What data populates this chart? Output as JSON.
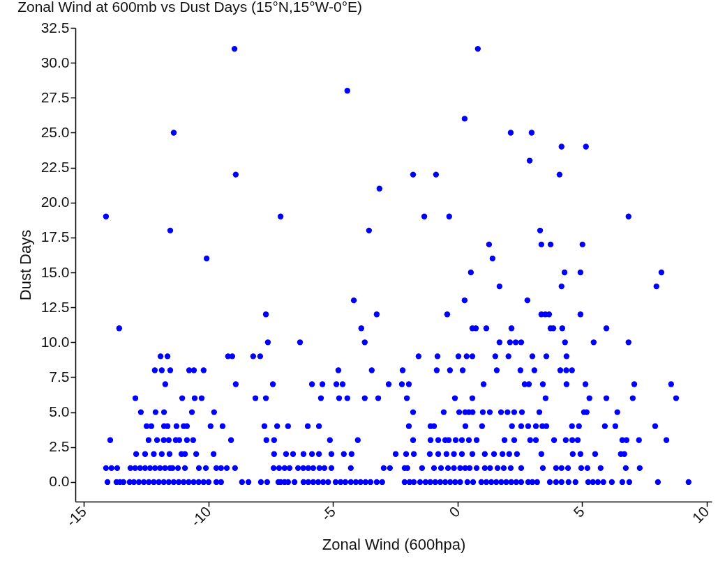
{
  "chart_data": {
    "type": "scatter",
    "title": "Zonal Wind at 600mb vs Dust Days (15°N,15°W-0°E)",
    "xlabel": "Zonal Wind (600hpa)",
    "ylabel": "Dust Days",
    "xlim": [
      -15.35,
      10.2
    ],
    "xticks": [
      -15,
      -10,
      -5,
      0,
      5,
      10
    ],
    "ylim": [
      -1.4,
      32.5
    ],
    "yticks": [
      {
        "value": 0,
        "label": "0.0"
      },
      {
        "value": 2.5,
        "label": "2.5"
      },
      {
        "value": 5,
        "label": "5.0"
      },
      {
        "value": 7.5,
        "label": "7.5"
      },
      {
        "value": 10,
        "label": "10.0"
      },
      {
        "value": 12.5,
        "label": "12.5"
      },
      {
        "value": 15,
        "label": "15.0"
      },
      {
        "value": 17.5,
        "label": "17.5"
      },
      {
        "value": 20,
        "label": "20.0"
      },
      {
        "value": 22.5,
        "label": "22.5"
      },
      {
        "value": 25,
        "label": "25.0"
      },
      {
        "value": 27.5,
        "label": "27.5"
      },
      {
        "value": 30,
        "label": "30.0"
      },
      {
        "value": 32.5,
        "label": "32.5"
      }
    ],
    "grid": false,
    "marker": "circle",
    "series": [
      {
        "color": "#0000ff",
        "x": [
          -14.06,
          -13.7,
          -13.56,
          -13.42,
          -13.17,
          -13.0,
          -12.8,
          -12.6,
          -12.4,
          -12.2,
          -12.0,
          -11.8,
          -11.6,
          -11.4,
          -11.2,
          -11.0,
          -10.8,
          -10.6,
          -10.4,
          -10.2,
          -10.0,
          -9.69,
          -9.5,
          -8.66,
          -8.4,
          -7.9,
          -7.65,
          -7.2,
          -7.11,
          -6.95,
          -6.81,
          -6.55,
          -6.19,
          -6.0,
          -5.8,
          -5.6,
          -5.4,
          -5.2,
          -4.9,
          -4.7,
          -4.51,
          -4.29,
          -4.09,
          -3.9,
          -3.7,
          -3.5,
          -3.25,
          -3.03,
          -2.13,
          -1.93,
          -1.76,
          -1.51,
          -1.29,
          -1.1,
          -0.9,
          -0.7,
          -0.5,
          -0.3,
          -0.1,
          0.1,
          0.39,
          0.62,
          0.95,
          1.15,
          1.35,
          1.55,
          1.75,
          1.95,
          2.15,
          2.35,
          2.55,
          2.83,
          3.0,
          3.19,
          3.7,
          3.95,
          4.17,
          4.45,
          4.73,
          5.24,
          5.43,
          5.63,
          5.85,
          6.19,
          6.61,
          6.89,
          8.04,
          9.27
        ],
        "values": [
          0,
          0,
          0,
          0,
          0,
          0,
          0,
          0,
          0,
          0,
          0,
          0,
          0,
          0,
          0,
          0,
          0,
          0,
          0,
          0,
          0,
          0,
          0,
          0,
          0,
          0,
          0,
          0,
          0,
          0,
          0,
          0,
          0,
          0,
          0,
          0,
          0,
          0,
          0,
          0,
          0,
          0,
          0,
          0,
          0,
          0,
          0,
          0,
          0,
          0,
          0,
          0,
          0,
          0,
          0,
          0,
          0,
          0,
          0,
          0,
          0,
          0,
          0,
          0,
          0,
          0,
          0,
          0,
          0,
          0,
          0,
          0,
          0,
          0,
          0,
          0,
          0,
          0,
          0,
          0,
          0,
          0,
          0,
          0,
          0,
          0,
          0,
          0
        ]
      },
      {
        "color": "#0000ff",
        "x": [
          -14.12,
          -13.9,
          -13.67,
          -13.14,
          -12.95,
          -12.75,
          -12.55,
          -12.35,
          -12.15,
          -11.95,
          -11.75,
          -11.55,
          -11.45,
          -11.23,
          -10.95,
          -10.39,
          -10.11,
          -9.69,
          -9.5,
          -9.27,
          -8.94,
          -7.39,
          -7.17,
          -6.95,
          -6.75,
          -6.41,
          -6.2,
          -6.0,
          -5.8,
          -5.55,
          -5.35,
          -5.07,
          -4.29,
          -2.97,
          -2.72,
          -2.13,
          -2.02,
          -1.43,
          -0.95,
          -0.67,
          -0.39,
          -0.15,
          0.1,
          0.3,
          0.48,
          0.76,
          1.09,
          1.3,
          1.6,
          1.85,
          2.13,
          2.55,
          3.42,
          3.95,
          4.17,
          4.43,
          4.96,
          5.21,
          5.74,
          6.75,
          7.31
        ],
        "values": [
          1,
          1,
          1,
          1,
          1,
          1,
          1,
          1,
          1,
          1,
          1,
          1,
          1,
          1,
          1,
          1,
          1,
          1,
          1,
          1,
          1,
          1,
          1,
          1,
          1,
          1,
          1,
          1,
          1,
          1,
          1,
          1,
          1,
          1,
          1,
          1,
          1,
          1,
          1,
          1,
          1,
          1,
          1,
          1,
          1,
          1,
          1,
          1,
          1,
          1,
          1,
          1,
          1,
          1,
          1,
          1,
          1,
          1,
          1,
          1,
          1
        ]
      },
      {
        "color": "#0000ff",
        "x": [
          -12.91,
          -12.55,
          -12.2,
          -11.88,
          -11.57,
          -11.09,
          -10.95,
          -10.5,
          -9.8,
          -7.37,
          -6.89,
          -6.61,
          -6.19,
          -5.85,
          -5.57,
          -5.07,
          -4.57,
          -4.26,
          -2.49,
          -2.07,
          -1.76,
          -1.12,
          -0.78,
          -0.45,
          -0.15,
          0.17,
          0.59,
          1.09,
          1.46,
          1.8,
          2.07,
          2.38,
          3.36,
          4.62,
          4.93,
          5.52,
          6.55,
          6.69
        ],
        "values": [
          2,
          2,
          2,
          2,
          2,
          2,
          2,
          2,
          2,
          2,
          2,
          2,
          2,
          2,
          2,
          2,
          2,
          2,
          2,
          2,
          2,
          2,
          2,
          2,
          2,
          2,
          2,
          2,
          2,
          2,
          2,
          2,
          2,
          2,
          2,
          2,
          2,
          2
        ]
      },
      {
        "color": "#0000ff",
        "x": [
          -13.95,
          -12.41,
          -12.07,
          -11.8,
          -11.6,
          -11.32,
          -11.18,
          -10.87,
          -10.62,
          -9.1,
          -7.68,
          -7.37,
          -5.13,
          -4.01,
          -1.79,
          -1.09,
          -0.78,
          -0.5,
          -0.36,
          -0.08,
          0.17,
          0.45,
          0.76,
          1.88,
          2.27,
          2.91,
          3.14,
          3.87,
          4.34,
          4.6,
          4.82,
          6.61,
          6.78,
          7.28,
          8.38
        ],
        "values": [
          3,
          3,
          3,
          3,
          3,
          3,
          3,
          3,
          3,
          3,
          3,
          3,
          3,
          3,
          3,
          3,
          3,
          3,
          3,
          3,
          3,
          3,
          3,
          3,
          3,
          3,
          3,
          3,
          3,
          3,
          3,
          3,
          3,
          3,
          3
        ]
      },
      {
        "color": "#0000ff",
        "x": [
          -12.49,
          -12.3,
          -11.79,
          -11.65,
          -11.29,
          -11.0,
          -10.87,
          -9.92,
          -9.44,
          -7.76,
          -7.25,
          -6.81,
          -6.02,
          -5.57,
          -1.96,
          -1.09,
          -0.95,
          0.31,
          0.98,
          2.18,
          2.55,
          2.83,
          3.14,
          3.4,
          3.56,
          4.59,
          4.87,
          5.91,
          6.33,
          7.93
        ],
        "values": [
          4,
          4,
          4,
          4,
          4,
          4,
          4,
          4,
          4,
          4,
          4,
          4,
          4,
          4,
          4,
          4,
          4,
          4,
          4,
          4,
          4,
          4,
          4,
          4,
          4,
          4,
          4,
          4,
          4,
          4
        ]
      },
      {
        "color": "#0000ff",
        "x": [
          -12.72,
          -12.13,
          -11.79,
          -10.67,
          -9.78,
          -1.79,
          -0.56,
          0.06,
          0.3,
          0.6,
          0.45,
          1.01,
          1.29,
          1.74,
          2.0,
          2.27,
          2.58,
          3.28,
          5.07,
          5.18,
          6.41
        ],
        "values": [
          5,
          5,
          5,
          5,
          5,
          5,
          5,
          5,
          5,
          5,
          5,
          5,
          5,
          5,
          5,
          5,
          5,
          5,
          5,
          5,
          5
        ]
      },
      {
        "color": "#0000ff",
        "x": [
          -12.94,
          -11.06,
          -10.56,
          -10.28,
          -8.12,
          -7.7,
          -5.49,
          -4.76,
          -4.43,
          -3.73,
          -3.19,
          -2.04,
          -0.11,
          0.59,
          3.53,
          5.29,
          5.97,
          7.03,
          8.77
        ],
        "values": [
          6,
          6,
          6,
          6,
          6,
          6,
          6,
          6,
          6,
          6,
          6,
          6,
          6,
          6,
          6,
          6,
          6,
          6,
          6
        ]
      },
      {
        "color": "#0000ff",
        "x": [
          -11.74,
          -8.91,
          -7.42,
          -5.85,
          -5.43,
          -4.87,
          -4.62,
          -2.77,
          -2.24,
          -1.96,
          1.04,
          2.69,
          2.86,
          3.42,
          4.37,
          5.13,
          7.09,
          8.57
        ],
        "values": [
          7,
          7,
          7,
          7,
          7,
          7,
          7,
          7,
          7,
          7,
          7,
          7,
          7,
          7,
          7,
          7,
          7,
          7
        ]
      },
      {
        "color": "#0000ff",
        "x": [
          -12.16,
          -11.88,
          -11.54,
          -10.78,
          -10.59,
          -10.2,
          -4.79,
          -3.45,
          -2.21,
          -0.84,
          -0.31,
          0.2,
          1.57,
          2.52,
          3.08,
          4.12,
          4.36,
          4.59
        ],
        "values": [
          8,
          8,
          8,
          8,
          8,
          8,
          8,
          8,
          8,
          8,
          8,
          8,
          8,
          8,
          8,
          8,
          8,
          8
        ]
      },
      {
        "color": "#0000ff",
        "x": [
          -11.93,
          -11.65,
          -9.22,
          -9.05,
          -8.21,
          -7.93,
          -1.57,
          -0.81,
          0.03,
          0.36,
          0.59,
          1.51,
          2.04,
          3.0,
          3.56,
          4.37
        ],
        "values": [
          9,
          9,
          9,
          9,
          9,
          9,
          9,
          9,
          9,
          9,
          9,
          9,
          9,
          9,
          9,
          9
        ]
      },
      {
        "color": "#0000ff",
        "x": [
          -7.62,
          -6.33,
          -3.73,
          1.68,
          2.1,
          2.33,
          2.55,
          4.31,
          5.46,
          6.86
        ],
        "values": [
          10,
          10,
          10,
          10,
          10,
          10,
          10,
          10,
          10,
          10
        ]
      },
      {
        "color": "#0000ff",
        "x": [
          -13.59,
          -3.87,
          0.59,
          0.73,
          1.15,
          2.16,
          3.73,
          3.84,
          4.2,
          5.97
        ],
        "values": [
          11,
          11,
          11,
          11,
          11,
          11,
          11,
          11,
          11,
          11
        ]
      },
      {
        "color": "#0000ff",
        "x": [
          -7.7,
          -3.25,
          -0.42,
          3.36,
          3.52,
          3.67,
          4.93
        ],
        "values": [
          12,
          12,
          12,
          12,
          12,
          12,
          12
        ]
      },
      {
        "color": "#0000ff",
        "x": [
          -4.17,
          0.28,
          2.8,
          1.68,
          4.17,
          7.98,
          0.53,
          4.29,
          4.93,
          8.18,
          1.4,
          -10.08,
          1.26,
          3.36,
          3.73,
          5.01
        ],
        "values": [
          13,
          13,
          13,
          14,
          14,
          14,
          15,
          15,
          15,
          15,
          16,
          16,
          17,
          17,
          17,
          17
        ]
      },
      {
        "color": "#0000ff",
        "x": [
          -11.54,
          -3.56,
          3.31,
          -14.12,
          -7.11,
          -1.34,
          -0.34,
          6.86,
          -3.14,
          -8.91,
          -1.79,
          -0.87,
          4.09,
          2.89,
          4.17,
          5.15,
          -11.4,
          2.13,
          2.97,
          0.28,
          -4.43,
          -8.96,
          0.81
        ],
        "values": [
          18,
          18,
          18,
          19,
          19,
          19,
          19,
          19,
          21,
          22,
          22,
          22,
          22,
          23,
          24,
          24,
          25,
          25,
          25,
          26,
          28,
          31,
          31
        ]
      }
    ]
  }
}
